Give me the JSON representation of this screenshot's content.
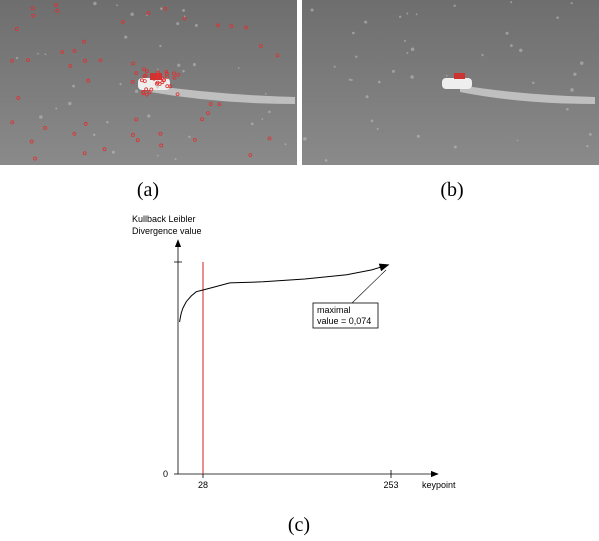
{
  "figure": {
    "panels": [
      {
        "label": "(a)"
      },
      {
        "label": "(b)"
      }
    ]
  },
  "chart_data": {
    "type": "line",
    "caption": "(c)",
    "ylabel": [
      "Kullback Leibler",
      "Divergence value"
    ],
    "xlabel": "keypoint",
    "annotation": [
      "maximal",
      "value = 0,074"
    ],
    "xlim": [
      0,
      307
    ],
    "ylim": [
      0,
      0.075
    ],
    "xticks": [
      28,
      253
    ],
    "yticks": [
      0
    ],
    "series": [
      {
        "color": "#000000",
        "x": [
          0,
          1,
          2,
          4,
          8,
          14,
          20,
          28,
          40,
          60,
          100,
          150,
          200,
          230,
          250
        ],
        "values": [
          0.0538,
          0.0555,
          0.057,
          0.0587,
          0.061,
          0.063,
          0.0645,
          0.0651,
          0.066,
          0.0676,
          0.068,
          0.069,
          0.0705,
          0.0722,
          0.074
        ]
      }
    ],
    "marker_color": "#cc2222"
  }
}
